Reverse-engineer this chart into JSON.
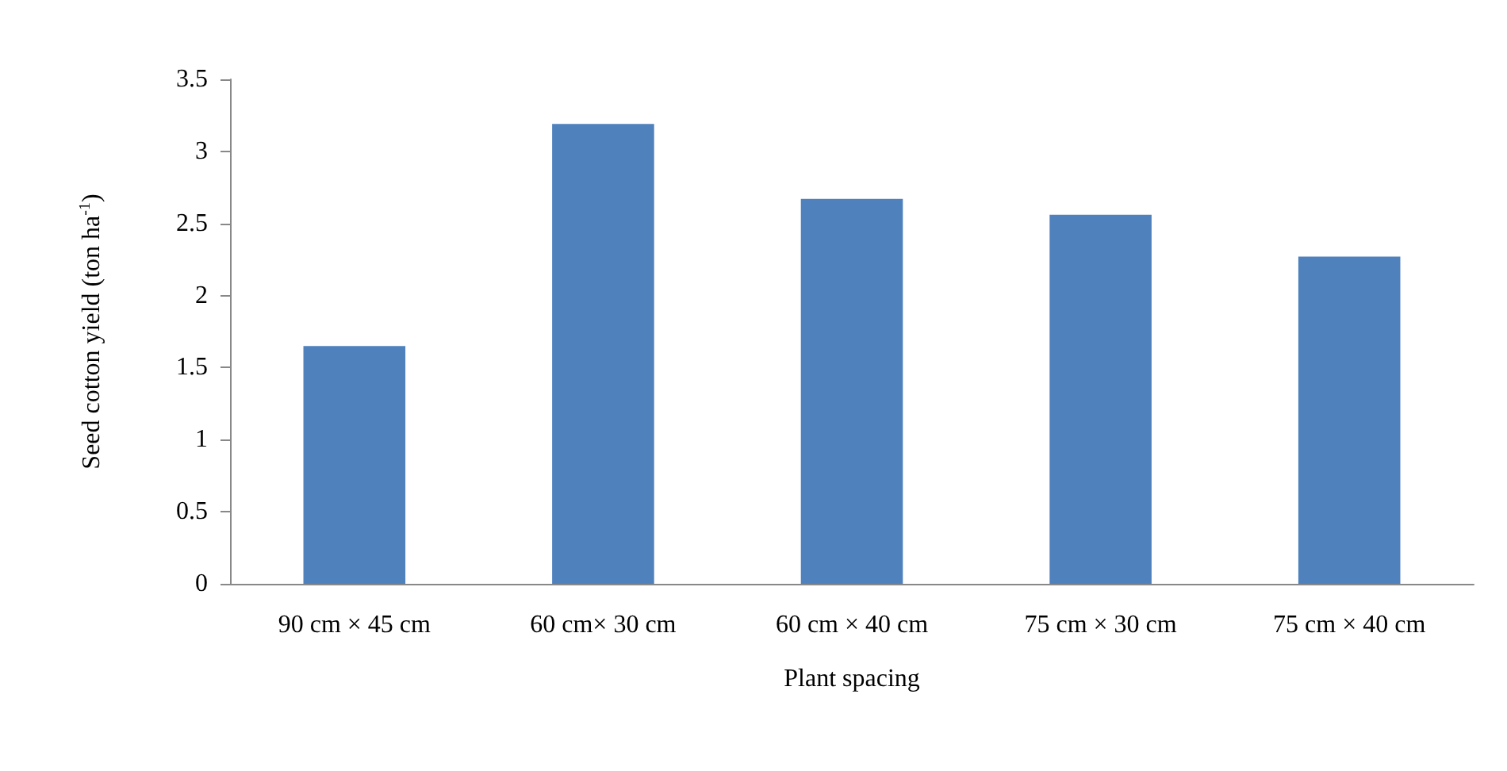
{
  "chart_data": {
    "type": "bar",
    "xlabel": "Plant spacing",
    "ylabel": "Seed cotton yield (ton ha$^{-1}$)",
    "categories": [
      "90 cm × 45 cm",
      "60 cm× 30 cm",
      "60 cm × 40 cm",
      "75 cm × 30 cm",
      "75 cm × 40 cm"
    ],
    "values": [
      1.65,
      3.19,
      2.67,
      2.56,
      2.27
    ],
    "color": "#4f81bd",
    "ylim": [
      0,
      3.5
    ],
    "yticks": [
      0,
      0.5,
      1,
      1.5,
      2,
      2.5,
      3,
      3.5
    ],
    "grid": false
  }
}
